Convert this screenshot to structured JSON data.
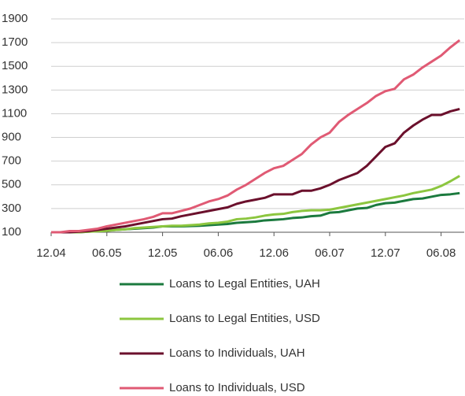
{
  "chart_data": {
    "type": "line",
    "categories": [
      "12.04",
      null,
      null,
      null,
      null,
      null,
      "06.05",
      null,
      null,
      null,
      null,
      null,
      "12.05",
      null,
      null,
      null,
      null,
      null,
      "06.06",
      null,
      null,
      null,
      null,
      null,
      "12.06",
      null,
      null,
      null,
      null,
      null,
      "06.07",
      null,
      null,
      null,
      null,
      null,
      "12.07",
      null,
      null,
      null,
      null,
      null,
      "06.08",
      null,
      null
    ],
    "ylim": [
      100,
      1900
    ],
    "yticks": [
      100,
      300,
      500,
      700,
      900,
      1100,
      1300,
      1500,
      1700,
      1900
    ],
    "grid": true,
    "legend": "bottom",
    "series": [
      {
        "name": "Loans to Legal Entities, UAH",
        "color": "#1b7a3e",
        "values": [
          100,
          100,
          100,
          100,
          105,
          110,
          115,
          120,
          125,
          130,
          135,
          140,
          150,
          150,
          150,
          152,
          155,
          160,
          165,
          170,
          180,
          185,
          190,
          200,
          205,
          210,
          220,
          225,
          235,
          240,
          265,
          270,
          285,
          300,
          305,
          330,
          345,
          350,
          365,
          380,
          385,
          400,
          415,
          420,
          430
        ]
      },
      {
        "name": "Loans to Legal Entities, USD",
        "color": "#8cc63f",
        "values": [
          100,
          100,
          100,
          100,
          105,
          108,
          112,
          120,
          125,
          135,
          140,
          145,
          150,
          155,
          155,
          160,
          165,
          175,
          180,
          190,
          210,
          215,
          225,
          240,
          250,
          255,
          270,
          280,
          285,
          285,
          290,
          305,
          320,
          335,
          350,
          365,
          380,
          395,
          410,
          430,
          445,
          460,
          490,
          530,
          575
        ]
      },
      {
        "name": "Loans to Individuals, UAH",
        "color": "#6b102c",
        "values": [
          100,
          100,
          100,
          105,
          110,
          120,
          130,
          140,
          150,
          165,
          180,
          195,
          210,
          215,
          235,
          250,
          265,
          280,
          295,
          310,
          340,
          360,
          375,
          390,
          420,
          420,
          420,
          450,
          450,
          470,
          500,
          540,
          570,
          600,
          660,
          740,
          820,
          850,
          940,
          1000,
          1050,
          1090,
          1090,
          1120,
          1140
        ]
      },
      {
        "name": "Loans to Individuals, USD",
        "color": "#e05a74",
        "values": [
          100,
          100,
          110,
          110,
          120,
          130,
          150,
          165,
          180,
          195,
          210,
          230,
          260,
          260,
          280,
          300,
          330,
          360,
          380,
          410,
          460,
          500,
          550,
          600,
          640,
          660,
          710,
          760,
          840,
          900,
          940,
          1030,
          1090,
          1140,
          1190,
          1250,
          1290,
          1310,
          1390,
          1430,
          1490,
          1540,
          1590,
          1660,
          1720
        ]
      }
    ]
  }
}
